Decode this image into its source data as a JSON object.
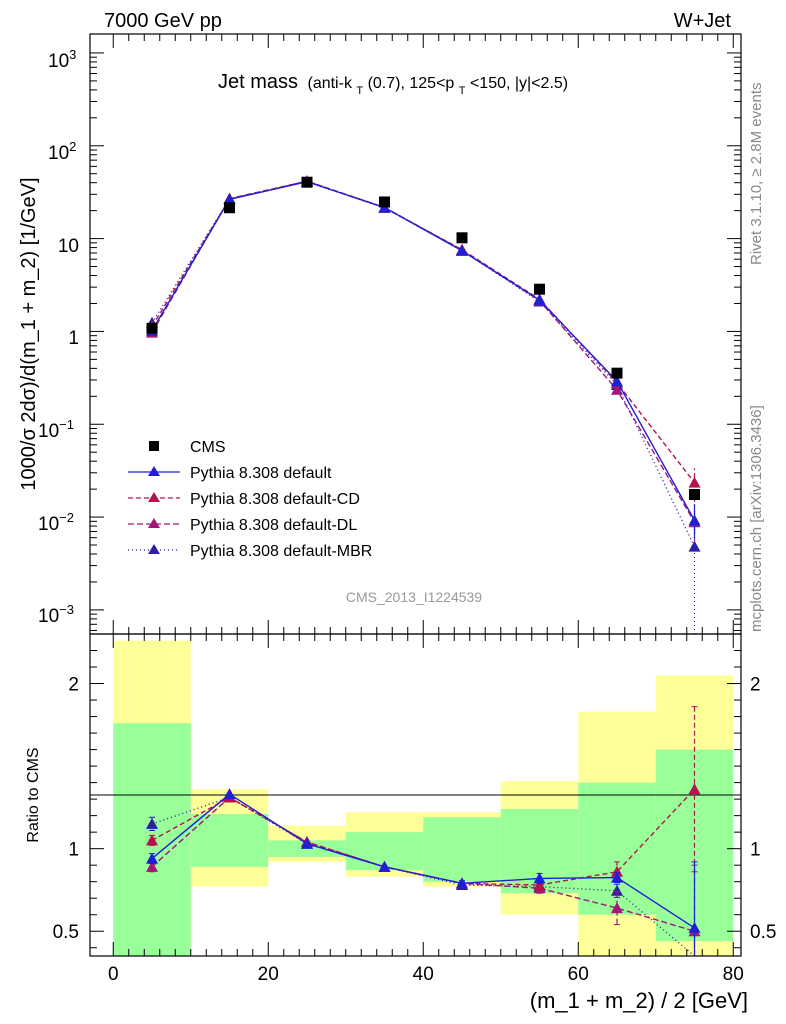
{
  "header": {
    "left": "7000 GeV pp",
    "right": "W+Jet"
  },
  "side_text": {
    "top": "Rivet 3.1.10, ≥ 2.8M events",
    "bottom": "mcplots.cern.ch [arXiv:1306.3436]"
  },
  "watermark": "CMS_2013_I1224539",
  "chart_data": [
    {
      "type": "line",
      "title_parts": {
        "main": "Jet mass",
        "a": "(anti-k",
        "a_sub": "T",
        "b": "(0.7), 125<p",
        "b_sub": "T",
        "c": "<150, |y|<2.5)"
      },
      "ylabel": "1000/σ 2dσ)/d(m_1 + m_2) [1/GeV]",
      "yscale": "log",
      "ylim": [
        0.00055,
        1600
      ],
      "xlim": [
        -3,
        81
      ],
      "y_tick_labels": {
        "e3": [
          "10",
          "3"
        ],
        "e2": [
          "10",
          "2"
        ],
        "ten": "10",
        "one": "1",
        "em1": [
          "10",
          "−1"
        ],
        "em2": [
          "10",
          "−2"
        ],
        "em3": [
          "10",
          "−3"
        ]
      },
      "x": [
        5,
        15,
        25,
        35,
        45,
        55,
        65,
        75
      ],
      "series": [
        {
          "name": "CMS",
          "color": "#000000",
          "marker": "square",
          "values": [
            1.08,
            21.5,
            40.5,
            24.8,
            10.2,
            2.85,
            0.355,
            0.0175
          ]
        },
        {
          "name": "Pythia 8.308 default",
          "color": "#1f1fd6",
          "marker": "triangle",
          "dash": "",
          "values": [
            1.02,
            26.5,
            41.0,
            21.6,
            7.4,
            2.18,
            0.29,
            0.0092
          ],
          "err_lo": [
            0,
            0,
            0,
            0,
            0,
            0,
            0,
            0.0033
          ],
          "err_hi": [
            0,
            0,
            0,
            0,
            0,
            0,
            0,
            0.0045
          ]
        },
        {
          "name": "Pythia 8.308 default-CD",
          "color": "#b5134f",
          "marker": "triangle",
          "dash": "5,3",
          "values": [
            1.13,
            26.6,
            41.6,
            21.5,
            7.6,
            2.22,
            0.28,
            0.0235
          ],
          "err_lo": [
            0,
            0,
            0,
            0,
            0,
            0,
            0,
            0.009
          ],
          "err_hi": [
            0,
            0,
            0,
            0,
            0,
            0,
            0,
            0.01
          ]
        },
        {
          "name": "Pythia 8.308 default-DL",
          "color": "#a01878",
          "marker": "triangle",
          "dash": "6,3",
          "values": [
            0.97,
            27.0,
            41.5,
            21.7,
            7.5,
            2.15,
            0.235,
            0.0088
          ],
          "err_lo": [
            0,
            0,
            0,
            0,
            0,
            0,
            0,
            0.0035
          ],
          "err_hi": [
            0,
            0,
            0,
            0,
            0,
            0,
            0,
            0.005
          ]
        },
        {
          "name": "Pythia 8.308 default-MBR",
          "color": "#2b1fa8",
          "marker": "triangle",
          "dash": "1,3",
          "values": [
            1.24,
            26.6,
            41.0,
            21.4,
            7.4,
            2.1,
            0.265,
            0.0048
          ],
          "err_lo": [
            0,
            0,
            0,
            0,
            0,
            0,
            0,
            0.0043
          ],
          "err_hi": [
            0,
            0,
            0,
            0,
            0,
            0,
            0,
            0.004
          ]
        }
      ]
    },
    {
      "type": "line",
      "ylabel": "Ratio to CMS",
      "xlabel": "(m_1 + m_2) / 2 [GeV]",
      "ylim": [
        0.35,
        2.3
      ],
      "xlim": [
        -3,
        81
      ],
      "yticks": [
        {
          "v": 0.5,
          "label": "0.5"
        },
        {
          "v": 1,
          "label": "1"
        },
        {
          "v": 2,
          "label": "2"
        }
      ],
      "xticks": [
        {
          "v": 0,
          "label": "0"
        },
        {
          "v": 20,
          "label": "20"
        },
        {
          "v": 40,
          "label": "40"
        },
        {
          "v": 60,
          "label": "60"
        },
        {
          "v": 80,
          "label": "80"
        }
      ],
      "bands": {
        "bins": [
          [
            0,
            10
          ],
          [
            10,
            20
          ],
          [
            20,
            30
          ],
          [
            30,
            40
          ],
          [
            40,
            50
          ],
          [
            50,
            60
          ],
          [
            60,
            70
          ],
          [
            70,
            80
          ]
        ],
        "yellow": [
          [
            0.35,
            2.26
          ],
          [
            0.77,
            1.36
          ],
          [
            0.92,
            1.14
          ],
          [
            0.83,
            1.22
          ],
          [
            0.77,
            1.22
          ],
          [
            0.6,
            1.41
          ],
          [
            0.35,
            1.83
          ],
          [
            0.35,
            2.05
          ]
        ],
        "green": [
          [
            0.35,
            1.76
          ],
          [
            0.89,
            1.21
          ],
          [
            0.95,
            1.05
          ],
          [
            0.87,
            1.1
          ],
          [
            0.8,
            1.19
          ],
          [
            0.73,
            1.24
          ],
          [
            0.6,
            1.4
          ],
          [
            0.44,
            1.6
          ]
        ],
        "yellow_color": "#ffff99",
        "green_color": "#99ff99"
      },
      "x": [
        5,
        15,
        25,
        35,
        45,
        55,
        65,
        75
      ],
      "series": [
        {
          "name": "Pythia 8.308 default",
          "color": "#1f1fd6",
          "dash": "",
          "values": [
            0.94,
            1.33,
            1.03,
            0.89,
            0.79,
            0.82,
            0.825,
            0.52
          ],
          "err_lo": [
            0.03,
            0,
            0,
            0,
            0.015,
            0.03,
            0.03,
            0.2
          ],
          "err_hi": [
            0.03,
            0,
            0,
            0,
            0.015,
            0.03,
            0.03,
            0.4
          ]
        },
        {
          "name": "Pythia 8.308 default-CD",
          "color": "#b5134f",
          "dash": "5,3",
          "values": [
            1.05,
            1.31,
            1.04,
            0.89,
            0.79,
            0.78,
            0.86,
            1.36
          ],
          "err_lo": [
            0.03,
            0,
            0,
            0,
            0.015,
            0.03,
            0.06,
            0.5
          ],
          "err_hi": [
            0.03,
            0,
            0,
            0,
            0.015,
            0.03,
            0.06,
            0.5
          ]
        },
        {
          "name": "Pythia 8.308 default-DL",
          "color": "#a01878",
          "dash": "6,3",
          "values": [
            0.89,
            1.31,
            1.04,
            0.89,
            0.79,
            0.76,
            0.64,
            0.5
          ],
          "err_lo": [
            0.03,
            0,
            0,
            0,
            0.015,
            0.03,
            0.1,
            0.2
          ],
          "err_hi": [
            0.03,
            0,
            0,
            0,
            0.015,
            0.03,
            0.1,
            0.4
          ]
        },
        {
          "name": "Pythia 8.308 default-MBR",
          "color": "#2b1fa8",
          "dash": "1,3",
          "values": [
            1.15,
            1.31,
            1.03,
            0.89,
            0.78,
            0.77,
            0.745,
            0.3
          ],
          "err_lo": [
            0.04,
            0,
            0,
            0,
            0.015,
            0.03,
            0.04,
            0
          ],
          "err_hi": [
            0.04,
            0,
            0,
            0,
            0.015,
            0.03,
            0.04,
            0
          ]
        }
      ]
    }
  ]
}
